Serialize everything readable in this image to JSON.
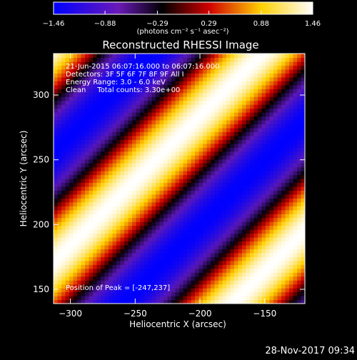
{
  "chart_data": {
    "type": "heatmap",
    "title": "Reconstructed RHESSI Image",
    "annotations": [
      "21-Jun-2015 06:07:16.000 to 06:07:16.000",
      "Detectors: 3F 5F 6F 7F 8F 9F All I",
      "Energy Range: 3.0 - 6.0 keV",
      "Clean     Total counts: 3.30e+00"
    ],
    "peak_label": "Position of Peak = [-247,237]",
    "peak": {
      "x": -247,
      "y": 237
    },
    "xlabel": "Heliocentric X (arcsec)",
    "ylabel": "Heliocentric Y (arcsec)",
    "xlim": [
      -313,
      -119
    ],
    "ylim": [
      139,
      332
    ],
    "xticks": [
      {
        "value": -300,
        "label": "−300"
      },
      {
        "value": -250,
        "label": "−250"
      },
      {
        "value": -200,
        "label": "−200"
      },
      {
        "value": -150,
        "label": "−150"
      }
    ],
    "yticks": [
      {
        "value": 150,
        "label": "150"
      },
      {
        "value": 200,
        "label": "200"
      },
      {
        "value": 250,
        "label": "250"
      },
      {
        "value": 300,
        "label": "300"
      }
    ],
    "colorbar": {
      "min": -1.46,
      "max": 1.46,
      "ticks": [
        {
          "value": -1.46,
          "label": "−1.46"
        },
        {
          "value": -0.88,
          "label": "−0.88"
        },
        {
          "value": -0.29,
          "label": "−0.29"
        },
        {
          "value": 0.29,
          "label": "0.29"
        },
        {
          "value": 0.88,
          "label": "0.88"
        },
        {
          "value": 1.46,
          "label": "1.46"
        }
      ],
      "unit_label": "(photons cm⁻² s⁻¹ asec⁻²)",
      "colors": [
        "#0000ff",
        "#7a1ec4",
        "#000000",
        "#ff0000",
        "#ffff00",
        "#ffffff"
      ]
    },
    "colormap_stops": [
      {
        "v": -1.46,
        "color": "#0000ff"
      },
      {
        "v": -0.75,
        "color": "#5a18b8"
      },
      {
        "v": -0.15,
        "color": "#000000"
      },
      {
        "v": 0.35,
        "color": "#d00000"
      },
      {
        "v": 0.95,
        "color": "#ffd000"
      },
      {
        "v": 1.46,
        "color": "#ffffff"
      }
    ],
    "pattern": {
      "amplitude": 1.46,
      "direction_deg": 135,
      "period_arcsec": 120,
      "center": {
        "x": -247,
        "y": 237
      },
      "grid_cols": 64,
      "grid_rows": 64
    }
  },
  "footer": {
    "date": "28-Nov-2017 09:34"
  }
}
